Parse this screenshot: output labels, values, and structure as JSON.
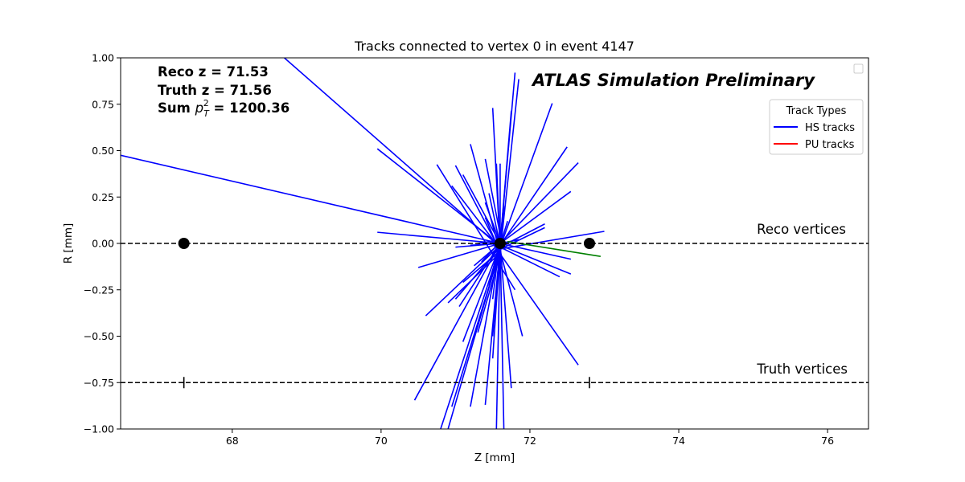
{
  "chart_data": {
    "type": "line",
    "title": "Tracks connected to vertex 0 in event 4147",
    "xlabel": "Z [mm]",
    "ylabel": "R [mm]",
    "xlim": [
      66.5,
      76.55
    ],
    "ylim": [
      -1.0,
      1.0
    ],
    "x_ticks": [
      68,
      70,
      72,
      74,
      76
    ],
    "y_ticks": [
      1.0,
      0.75,
      0.5,
      0.25,
      0.0,
      -0.25,
      -0.5,
      -0.75,
      -1.0
    ],
    "x_tick_labels": [
      "68",
      "70",
      "72",
      "74",
      "76"
    ],
    "y_tick_labels": [
      "1.00",
      "0.75",
      "0.50",
      "0.25",
      "0.00",
      "−0.25",
      "−0.50",
      "−0.75",
      "−1.00"
    ],
    "grid": false,
    "info": {
      "reco_z": "Reco z = 71.53",
      "truth_z": "Truth z = 71.56",
      "sum_pt2_prefix": "Sum ",
      "sum_pt2_p": "p",
      "sum_pt2_sub": "T",
      "sum_pt2_sup": "2",
      "sum_pt2_value": " = 1200.36"
    },
    "atlas_label": "ATLAS Simulation Preliminary",
    "reco_vertices": {
      "label": "Reco vertices",
      "r": 0.0,
      "z": [
        67.35,
        71.6,
        72.8
      ]
    },
    "truth_vertices": {
      "label": "Truth vertices",
      "r": -0.75,
      "z": [
        67.35,
        72.8
      ]
    },
    "legend": {
      "title": "Track Types",
      "placement": "upper-right",
      "entries": [
        {
          "name": "HS tracks",
          "color": "#0000ff"
        },
        {
          "name": "PU tracks",
          "color": "#ff0000"
        }
      ]
    },
    "colors": {
      "hs": "#0000ff",
      "pu": "#ff0000",
      "other": "#008000"
    },
    "hs_tracks": [
      [
        66.5,
        0.475,
        71.6,
        0.0
      ],
      [
        68.7,
        1.0,
        71.6,
        -0.02
      ],
      [
        69.95,
        0.51,
        71.6,
        -0.01
      ],
      [
        69.95,
        0.06,
        71.6,
        0.0
      ],
      [
        70.75,
        0.425,
        71.8,
        -0.25
      ],
      [
        70.95,
        0.31,
        71.6,
        -0.03
      ],
      [
        71.0,
        0.42,
        71.6,
        -0.04
      ],
      [
        71.1,
        0.37,
        71.6,
        0.0
      ],
      [
        71.2,
        0.535,
        71.6,
        -0.05
      ],
      [
        71.4,
        0.22,
        71.6,
        0.0
      ],
      [
        71.45,
        0.27,
        71.6,
        -0.01
      ],
      [
        71.5,
        0.73,
        71.6,
        -0.03
      ],
      [
        71.4,
        0.455,
        71.6,
        0.05
      ],
      [
        71.55,
        0.43,
        71.6,
        -0.03
      ],
      [
        71.6,
        0.43,
        71.6,
        -0.06
      ],
      [
        71.8,
        0.92,
        71.6,
        0.0
      ],
      [
        71.75,
        0.715,
        71.6,
        0.0
      ],
      [
        71.85,
        0.885,
        71.6,
        -0.05
      ],
      [
        72.3,
        0.755,
        71.6,
        -0.02
      ],
      [
        72.5,
        0.52,
        71.6,
        -0.01
      ],
      [
        72.65,
        0.435,
        71.6,
        0.0
      ],
      [
        72.55,
        0.28,
        71.6,
        0.0
      ],
      [
        73.0,
        0.065,
        71.6,
        -0.03
      ],
      [
        72.2,
        0.105,
        71.6,
        -0.02
      ],
      [
        72.2,
        0.085,
        71.5,
        -0.05
      ],
      [
        72.55,
        -0.085,
        71.6,
        0.0
      ],
      [
        72.55,
        -0.165,
        71.6,
        -0.01
      ],
      [
        72.4,
        -0.18,
        71.6,
        -0.02
      ],
      [
        72.65,
        -0.655,
        71.5,
        0.0
      ],
      [
        71.9,
        -0.5,
        71.6,
        -0.04
      ],
      [
        71.75,
        -0.78,
        71.6,
        0.0
      ],
      [
        71.65,
        -1.0,
        71.6,
        0.0
      ],
      [
        71.55,
        -1.0,
        71.6,
        0.0
      ],
      [
        71.4,
        -0.87,
        71.6,
        -0.02
      ],
      [
        71.5,
        -0.5,
        71.6,
        0.0
      ],
      [
        71.5,
        -0.62,
        71.6,
        -0.02
      ],
      [
        71.2,
        -0.88,
        71.6,
        0.0
      ],
      [
        71.3,
        -0.48,
        71.6,
        -0.06
      ],
      [
        71.1,
        -0.53,
        71.6,
        -0.01
      ],
      [
        71.05,
        -0.34,
        71.6,
        0.0
      ],
      [
        70.95,
        -0.88,
        71.6,
        -0.04
      ],
      [
        70.9,
        -1.0,
        71.6,
        -0.03
      ],
      [
        70.8,
        -1.0,
        71.6,
        -0.02
      ],
      [
        70.45,
        -0.845,
        71.6,
        0.0
      ],
      [
        70.6,
        -0.39,
        71.6,
        -0.01
      ],
      [
        70.5,
        -0.13,
        71.6,
        0.0
      ],
      [
        70.9,
        -0.32,
        71.6,
        -0.05
      ],
      [
        71.0,
        -0.3,
        71.6,
        -0.02
      ],
      [
        71.1,
        -0.21,
        71.6,
        -0.04
      ],
      [
        71.25,
        -0.12,
        71.6,
        0.0
      ],
      [
        71.3,
        0.0,
        71.6,
        0.02
      ],
      [
        71.0,
        -0.02,
        71.6,
        0.0
      ],
      [
        71.2,
        -0.01,
        71.6,
        0.0
      ],
      [
        71.35,
        -0.1,
        71.65,
        0.03
      ],
      [
        71.45,
        -0.23,
        71.6,
        0.02
      ],
      [
        71.5,
        -0.3,
        71.6,
        0.03
      ],
      [
        71.85,
        0.02,
        71.6,
        0.0
      ],
      [
        71.7,
        0.12,
        71.6,
        -0.01
      ],
      [
        71.65,
        0.2,
        71.6,
        -0.05
      ],
      [
        71.4,
        0.14,
        71.6,
        -0.05
      ]
    ],
    "other_tracks": [
      [
        71.7,
        0.01,
        72.95,
        -0.07
      ]
    ]
  }
}
